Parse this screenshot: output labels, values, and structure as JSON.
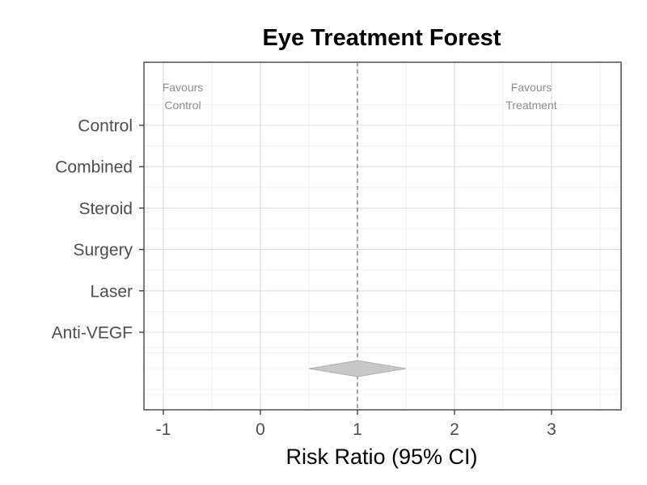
{
  "chart_data": {
    "type": "forest",
    "title": "Eye Treatment Forest",
    "xlabel": "Risk Ratio (95% CI)",
    "ylabel": "",
    "xlim": [
      -1.2,
      3.7
    ],
    "x_ticks": [
      -1,
      0,
      1,
      2,
      3
    ],
    "x_tick_labels": [
      "-1",
      "0",
      "1",
      "2",
      "3"
    ],
    "categories": [
      "Control",
      "Combined",
      "Steroid",
      "Surgery",
      "Laser",
      "Anti-VEGF"
    ],
    "reference_line": {
      "x": 1,
      "style": "dashed",
      "color": "#808080"
    },
    "summary": {
      "estimate": 1.0,
      "lower": 0.5,
      "upper": 1.5,
      "color": "#c8c8c8"
    },
    "annotations": {
      "left": [
        "Favours",
        "Control"
      ],
      "right": [
        "Favours",
        "Treatment"
      ]
    },
    "grid": true,
    "legend": "none"
  }
}
